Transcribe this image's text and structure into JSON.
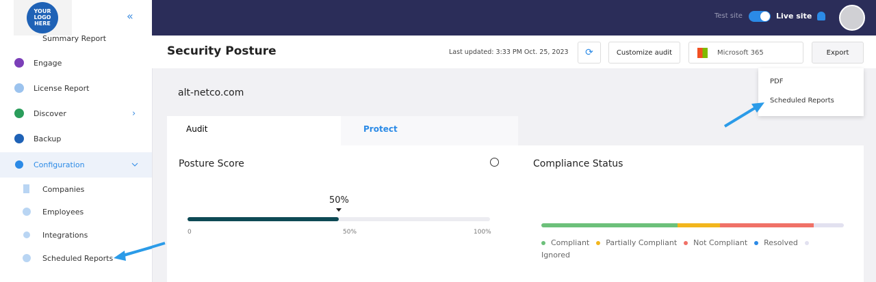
{
  "logo": {
    "text": "YOUR LOGO HERE"
  },
  "sidebar": {
    "items": [
      "Summary Report",
      "Engage",
      "License Report",
      "Discover",
      "Backup",
      "Configuration"
    ],
    "subitems": [
      "Companies",
      "Employees",
      "Integrations",
      "Scheduled Reports"
    ]
  },
  "topbar": {
    "test_site": "Test site",
    "live_site": "Live site"
  },
  "header": {
    "title": "Security Posture",
    "last_updated": "Last updated: 3:33 PM Oct. 25, 2023",
    "customize": "Customize audit",
    "product": "Microsoft 365",
    "export": "Export"
  },
  "export_menu": [
    "PDF",
    "Scheduled Reports"
  ],
  "tenant": "alt-netco.com",
  "tabs": [
    "Audit",
    "Protect"
  ],
  "posture": {
    "title": "Posture Score",
    "score": {
      "value": 50,
      "label": "50%"
    },
    "scale": [
      {
        "value": 0,
        "label": "0"
      },
      {
        "value": 50,
        "label": "50%"
      },
      {
        "value": 100,
        "label": "100%"
      }
    ]
  },
  "compliance": {
    "title": "Compliance Status",
    "segments": [
      {
        "name": "Compliant",
        "color": "#6cc07a",
        "value": 45
      },
      {
        "name": "Partially Compliant",
        "color": "#f2b61d",
        "value": 14
      },
      {
        "name": "Not Compliant",
        "color": "#f07167",
        "value": 31
      },
      {
        "name": "Resolved",
        "color": "#2b8ae6",
        "value": 0
      },
      {
        "name": "Ignored",
        "color": "#e2e1f0",
        "value": 10
      }
    ]
  }
}
